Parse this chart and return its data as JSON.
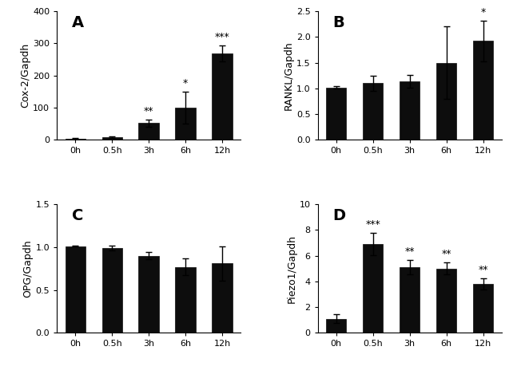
{
  "categories": [
    "0h",
    "0.5h",
    "3h",
    "6h",
    "12h"
  ],
  "A": {
    "label": "A",
    "ylabel": "Cox-2/Gapdh",
    "values": [
      3,
      8,
      52,
      100,
      268
    ],
    "errors": [
      2,
      2,
      12,
      50,
      25
    ],
    "ylim": [
      0,
      400
    ],
    "yticks": [
      0,
      100,
      200,
      300,
      400
    ],
    "ytick_labels": [
      "0",
      "100",
      "200",
      "300",
      "400"
    ],
    "sig": [
      "",
      "",
      "**",
      "*",
      "***"
    ]
  },
  "B": {
    "label": "B",
    "ylabel": "RANKL/Gapdh",
    "values": [
      1.02,
      1.1,
      1.14,
      1.5,
      1.92
    ],
    "errors": [
      0.02,
      0.15,
      0.12,
      0.7,
      0.4
    ],
    "ylim": [
      0,
      2.5
    ],
    "yticks": [
      0.0,
      0.5,
      1.0,
      1.5,
      2.0,
      2.5
    ],
    "ytick_labels": [
      "0.0",
      "0.5",
      "1.0",
      "1.5",
      "2.0",
      "2.5"
    ],
    "sig": [
      "",
      "",
      "",
      "",
      "*"
    ]
  },
  "C": {
    "label": "C",
    "ylabel": "OPG/Gapdh",
    "values": [
      1.01,
      0.99,
      0.9,
      0.77,
      0.81
    ],
    "errors": [
      0.005,
      0.025,
      0.04,
      0.1,
      0.2
    ],
    "ylim": [
      0,
      1.5
    ],
    "yticks": [
      0.0,
      0.5,
      1.0,
      1.5
    ],
    "ytick_labels": [
      "0.0",
      "0.5",
      "1.0",
      "1.5"
    ],
    "sig": [
      "",
      "",
      "",
      "",
      ""
    ]
  },
  "D": {
    "label": "D",
    "ylabel": "Piezo1/Gapdh",
    "values": [
      1.1,
      6.9,
      5.1,
      5.0,
      3.8
    ],
    "errors": [
      0.35,
      0.85,
      0.55,
      0.45,
      0.45
    ],
    "ylim": [
      0,
      10
    ],
    "yticks": [
      0,
      2,
      4,
      6,
      8,
      10
    ],
    "ytick_labels": [
      "0",
      "2",
      "4",
      "6",
      "8",
      "10"
    ],
    "sig": [
      "",
      "***",
      "**",
      "**",
      "**"
    ]
  },
  "bar_color": "#0d0d0d",
  "bar_width": 0.55,
  "font_family": "DejaVu Sans",
  "label_fontsize": 14,
  "tick_fontsize": 8,
  "ylabel_fontsize": 9,
  "sig_fontsize": 9
}
